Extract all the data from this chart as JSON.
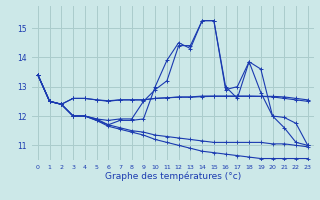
{
  "background_color": "#cce8e8",
  "grid_color": "#aacccc",
  "line_color": "#1a3ab0",
  "xlabel": "Graphe des températures (°c)",
  "ylim": [
    10.5,
    15.75
  ],
  "xlim": [
    -0.5,
    23.5
  ],
  "yticks": [
    11,
    12,
    13,
    14,
    15
  ],
  "xticks": [
    0,
    1,
    2,
    3,
    4,
    5,
    6,
    7,
    8,
    9,
    10,
    11,
    12,
    13,
    14,
    15,
    16,
    17,
    18,
    19,
    20,
    21,
    22,
    23
  ],
  "series": [
    [
      13.4,
      12.5,
      12.4,
      12.0,
      12.0,
      11.9,
      11.7,
      11.85,
      11.85,
      11.9,
      13.0,
      13.9,
      14.5,
      14.3,
      15.25,
      15.25,
      12.9,
      13.0,
      13.85,
      13.6,
      12.0,
      11.6,
      11.1,
      11.0
    ],
    [
      13.4,
      12.5,
      12.4,
      12.0,
      12.0,
      11.9,
      11.85,
      11.9,
      11.9,
      12.5,
      12.9,
      13.2,
      14.4,
      14.4,
      15.25,
      15.25,
      13.0,
      12.6,
      13.85,
      12.8,
      12.0,
      11.95,
      11.75,
      11.0
    ],
    [
      13.4,
      12.5,
      12.4,
      12.6,
      12.6,
      12.55,
      12.5,
      12.55,
      12.55,
      12.55,
      12.6,
      12.62,
      12.65,
      12.65,
      12.68,
      12.68,
      12.68,
      12.68,
      12.68,
      12.67,
      12.65,
      12.6,
      12.55,
      12.5
    ],
    [
      13.4,
      12.5,
      12.4,
      12.6,
      12.6,
      12.55,
      12.52,
      12.55,
      12.55,
      12.55,
      12.6,
      12.62,
      12.64,
      12.64,
      12.66,
      12.67,
      12.67,
      12.67,
      12.67,
      12.67,
      12.67,
      12.65,
      12.6,
      12.55
    ]
  ],
  "diagonal_series": [
    [
      13.4,
      12.5,
      12.4,
      12.0,
      12.0,
      11.85,
      11.65,
      11.55,
      11.45,
      11.35,
      11.2,
      11.1,
      11.0,
      10.9,
      10.8,
      10.75,
      10.7,
      10.65,
      10.6,
      10.55,
      10.55,
      10.55,
      10.55,
      10.55
    ],
    [
      13.4,
      12.5,
      12.4,
      12.0,
      12.0,
      11.85,
      11.7,
      11.6,
      11.5,
      11.45,
      11.35,
      11.3,
      11.25,
      11.2,
      11.15,
      11.1,
      11.1,
      11.1,
      11.1,
      11.1,
      11.05,
      11.05,
      11.0,
      10.95
    ]
  ]
}
